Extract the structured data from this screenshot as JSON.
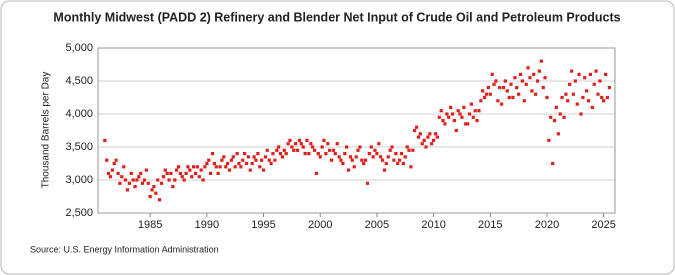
{
  "chart_data": {
    "type": "scatter",
    "title": "Monthly Midwest (PADD 2) Refinery and Blender Net Input of Crude Oil and Petroleum Products",
    "y_label": "Thousand Barrels per Day",
    "source": "Source: U.S. Energy Information Administration",
    "xlim": [
      1980.4,
      2026
    ],
    "ylim": [
      2500,
      5000
    ],
    "xticks": [
      1985,
      1990,
      1995,
      2000,
      2005,
      2010,
      2015,
      2020,
      2025
    ],
    "yticks": [
      {
        "value": 2500,
        "label": "2,500"
      },
      {
        "value": 3000,
        "label": "3,000"
      },
      {
        "value": 3500,
        "label": "3,500"
      },
      {
        "value": 4000,
        "label": "4,000"
      },
      {
        "value": 4500,
        "label": "4,500"
      },
      {
        "value": 5000,
        "label": "5,000"
      }
    ],
    "grid": true,
    "series": [
      {
        "color": "#e0201b",
        "x": [
          1981,
          1981.17,
          1981.33,
          1981.5,
          1981.67,
          1981.83,
          1982,
          1982.17,
          1982.33,
          1982.5,
          1982.67,
          1982.83,
          1983,
          1983.17,
          1983.33,
          1983.5,
          1983.67,
          1983.83,
          1984,
          1984.17,
          1984.33,
          1984.5,
          1984.67,
          1984.83,
          1985,
          1985.17,
          1985.33,
          1985.5,
          1985.67,
          1985.83,
          1986,
          1986.17,
          1986.33,
          1986.5,
          1986.67,
          1986.83,
          1987,
          1987.17,
          1987.33,
          1987.5,
          1987.67,
          1987.83,
          1988,
          1988.17,
          1988.33,
          1988.5,
          1988.67,
          1988.83,
          1989,
          1989.17,
          1989.33,
          1989.5,
          1989.67,
          1989.83,
          1990,
          1990.17,
          1990.33,
          1990.5,
          1990.67,
          1990.83,
          1991,
          1991.17,
          1991.33,
          1991.5,
          1991.67,
          1991.83,
          1992,
          1992.17,
          1992.33,
          1992.5,
          1992.67,
          1992.83,
          1993,
          1993.17,
          1993.33,
          1993.5,
          1993.67,
          1993.83,
          1994,
          1994.17,
          1994.33,
          1994.5,
          1994.67,
          1994.83,
          1995,
          1995.17,
          1995.33,
          1995.5,
          1995.67,
          1995.83,
          1996,
          1996.17,
          1996.33,
          1996.5,
          1996.67,
          1996.83,
          1997,
          1997.17,
          1997.33,
          1997.5,
          1997.67,
          1997.83,
          1998,
          1998.17,
          1998.33,
          1998.5,
          1998.67,
          1998.83,
          1999,
          1999.17,
          1999.33,
          1999.5,
          1999.67,
          1999.83,
          2000,
          2000.17,
          2000.33,
          2000.5,
          2000.67,
          2000.83,
          2001,
          2001.17,
          2001.33,
          2001.5,
          2001.67,
          2001.83,
          2002,
          2002.17,
          2002.33,
          2002.5,
          2002.67,
          2002.83,
          2003,
          2003.17,
          2003.33,
          2003.5,
          2003.67,
          2003.83,
          2004,
          2004.17,
          2004.33,
          2004.5,
          2004.67,
          2004.83,
          2005,
          2005.17,
          2005.33,
          2005.5,
          2005.67,
          2005.83,
          2006,
          2006.17,
          2006.33,
          2006.5,
          2006.67,
          2006.83,
          2007,
          2007.17,
          2007.33,
          2007.5,
          2007.67,
          2007.83,
          2008,
          2008.17,
          2008.33,
          2008.5,
          2008.67,
          2008.83,
          2009,
          2009.17,
          2009.33,
          2009.5,
          2009.67,
          2009.83,
          2010,
          2010.17,
          2010.33,
          2010.5,
          2010.67,
          2010.83,
          2011,
          2011.17,
          2011.33,
          2011.5,
          2011.67,
          2011.83,
          2012,
          2012.17,
          2012.33,
          2012.5,
          2012.67,
          2012.83,
          2013,
          2013.17,
          2013.33,
          2013.5,
          2013.67,
          2013.83,
          2014,
          2014.17,
          2014.33,
          2014.5,
          2014.67,
          2014.83,
          2015,
          2015.17,
          2015.33,
          2015.5,
          2015.67,
          2015.83,
          2016,
          2016.17,
          2016.33,
          2016.5,
          2016.67,
          2016.83,
          2017,
          2017.17,
          2017.33,
          2017.5,
          2017.67,
          2017.83,
          2018,
          2018.17,
          2018.33,
          2018.5,
          2018.67,
          2018.83,
          2019,
          2019.17,
          2019.33,
          2019.5,
          2019.67,
          2019.83,
          2020,
          2020.17,
          2020.33,
          2020.5,
          2020.67,
          2020.83,
          2021,
          2021.17,
          2021.33,
          2021.5,
          2021.67,
          2021.83,
          2022,
          2022.17,
          2022.33,
          2022.5,
          2022.67,
          2022.83,
          2023,
          2023.17,
          2023.33,
          2023.5,
          2023.67,
          2023.83,
          2024,
          2024.17,
          2024.33,
          2024.5,
          2024.67,
          2024.83,
          2025,
          2025.17,
          2025.33,
          2025.5
        ],
        "values": [
          3600,
          3300,
          3100,
          3050,
          3150,
          3250,
          3300,
          3100,
          2950,
          3050,
          3200,
          3000,
          2850,
          2950,
          3100,
          3000,
          2900,
          3000,
          3050,
          3100,
          2950,
          3000,
          3150,
          2950,
          2750,
          2850,
          2900,
          2800,
          3000,
          2700,
          2950,
          3050,
          3150,
          3100,
          3000,
          3100,
          2900,
          3000,
          3150,
          3200,
          3100,
          3050,
          3000,
          3100,
          3200,
          3150,
          3050,
          3200,
          3100,
          3200,
          3050,
          3150,
          3000,
          3200,
          3250,
          3300,
          3100,
          3400,
          3250,
          3200,
          3100,
          3200,
          3300,
          3350,
          3200,
          3250,
          3150,
          3300,
          3350,
          3200,
          3400,
          3250,
          3200,
          3300,
          3400,
          3250,
          3350,
          3150,
          3250,
          3350,
          3300,
          3400,
          3200,
          3300,
          3150,
          3350,
          3450,
          3300,
          3250,
          3400,
          3300,
          3450,
          3500,
          3400,
          3350,
          3450,
          3400,
          3550,
          3600,
          3500,
          3450,
          3550,
          3450,
          3600,
          3550,
          3500,
          3400,
          3600,
          3400,
          3550,
          3500,
          3450,
          3100,
          3400,
          3350,
          3500,
          3600,
          3400,
          3550,
          3450,
          3300,
          3450,
          3400,
          3550,
          3350,
          3300,
          3250,
          3400,
          3500,
          3150,
          3350,
          3300,
          3200,
          3350,
          3450,
          3500,
          3300,
          3250,
          3300,
          2950,
          3400,
          3500,
          3350,
          3450,
          3400,
          3550,
          3350,
          3300,
          3150,
          3250,
          3350,
          3450,
          3500,
          3300,
          3400,
          3250,
          3300,
          3400,
          3250,
          3350,
          3500,
          3450,
          3200,
          3450,
          3750,
          3800,
          3650,
          3700,
          3550,
          3600,
          3500,
          3650,
          3700,
          3550,
          3600,
          3700,
          3650,
          3950,
          4050,
          3900,
          3850,
          4000,
          3950,
          4100,
          4000,
          3900,
          3750,
          4050,
          4000,
          3950,
          4100,
          3850,
          3850,
          4000,
          4150,
          3950,
          4050,
          3900,
          4050,
          4200,
          4350,
          4250,
          4300,
          4400,
          4300,
          4600,
          4450,
          4500,
          4200,
          4400,
          4150,
          4400,
          4500,
          4350,
          4250,
          4450,
          4250,
          4550,
          4400,
          4300,
          4600,
          4500,
          4200,
          4450,
          4700,
          4550,
          4350,
          4600,
          4300,
          4500,
          4650,
          4800,
          4400,
          4550,
          4250,
          3600,
          3950,
          3250,
          3900,
          4100,
          3700,
          4000,
          4250,
          3950,
          4300,
          4200,
          4450,
          4650,
          4300,
          4500,
          4150,
          4600,
          4000,
          4250,
          4550,
          4350,
          4200,
          4600,
          4100,
          4450,
          4650,
          4300,
          4500,
          4250,
          4200,
          4600,
          4250,
          4400
        ]
      }
    ]
  }
}
